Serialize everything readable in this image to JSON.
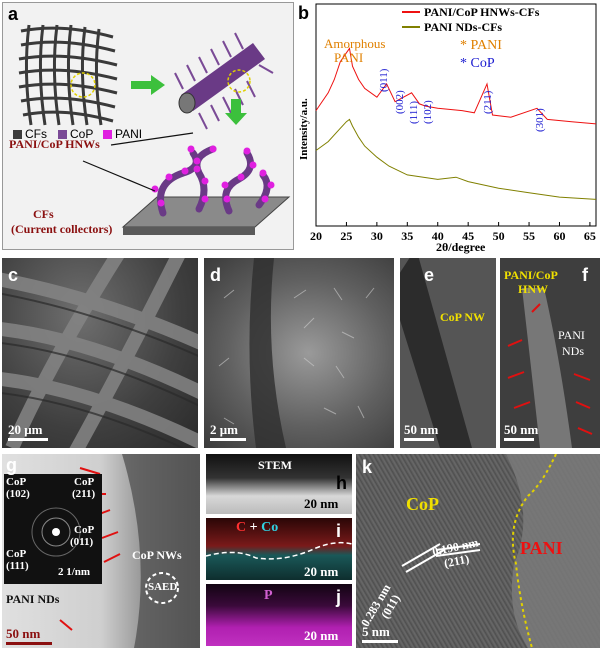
{
  "panels": {
    "a": {
      "label": "a",
      "legend": [
        "CFs",
        "CoP",
        "PANI"
      ],
      "legend_colors": [
        "#3c3c3c",
        "#7a4a96",
        "#e020e0"
      ],
      "hnw_label": "PANI/CoP HNWs",
      "cf_label_1": "CFs",
      "cf_label_2": "(Current collectors)"
    },
    "b": {
      "label": "b",
      "annotations": {
        "amorphous_1": "Amorphous",
        "amorphous_2": "PANI",
        "pani_marker": "* PANI",
        "cop_marker": "* CoP",
        "peaks": [
          "(011)",
          "(002)",
          "(111)",
          "(102)",
          "(211)",
          "(301)"
        ]
      }
    },
    "c": {
      "label": "c",
      "scale": "20 μm"
    },
    "d": {
      "label": "d",
      "scale": "2 μm"
    },
    "e": {
      "label": "e",
      "scale": "50 nm",
      "caption": "CoP NW"
    },
    "f": {
      "label": "f",
      "scale": "50 nm",
      "caption_1": "PANI/CoP",
      "caption_2": "HNW",
      "nds_1": "PANI",
      "nds_2": "NDs"
    },
    "g": {
      "label": "g",
      "scale": "50 nm",
      "inset_scale": "2 1/nm",
      "inset_labels": [
        "CoP",
        "(102)",
        "CoP",
        "(211)",
        "CoP",
        "(011)",
        "CoP",
        "(111)"
      ],
      "nws": "CoP NWs",
      "saed": "SAED",
      "nds": "PANI NDs"
    },
    "h": {
      "label": "h",
      "title": "STEM",
      "scale": "20 nm"
    },
    "i": {
      "label": "i",
      "c": "C",
      "plus": " + ",
      "co": "Co",
      "scale": "20 nm"
    },
    "j": {
      "label": "j",
      "p": "P",
      "scale": "20 nm"
    },
    "k": {
      "label": "k",
      "cop": "CoP",
      "pani": "PANI",
      "d1": "0.283 nm",
      "h1": "(011)",
      "d2": "0.190 nm",
      "h2": "(211)",
      "scale": "5 nm"
    }
  },
  "chart_data": {
    "type": "line",
    "xlabel": "2θ/degree",
    "ylabel": "Intensity/a.u.",
    "xlim": [
      20,
      66
    ],
    "xticks": [
      20,
      25,
      30,
      35,
      40,
      45,
      50,
      55,
      60,
      65
    ],
    "legend_position": "top-right",
    "series": [
      {
        "name": "PANI/CoP HNWs-CFs",
        "color": "#ee1111",
        "x": [
          20,
          22,
          23,
          24,
          25,
          25.5,
          26,
          27,
          28,
          30,
          31.6,
          33,
          35.7,
          37,
          38,
          40,
          44,
          46,
          48.1,
          49,
          52,
          56.3,
          58,
          62,
          66
        ],
        "y": [
          0.52,
          0.6,
          0.66,
          0.74,
          0.78,
          0.8,
          0.72,
          0.66,
          0.62,
          0.58,
          0.64,
          0.56,
          0.6,
          0.55,
          0.54,
          0.53,
          0.52,
          0.51,
          0.64,
          0.5,
          0.49,
          0.53,
          0.48,
          0.47,
          0.46
        ]
      },
      {
        "name": "PANI NDs-CFs",
        "color": "#808000",
        "x": [
          20,
          22,
          24,
          25,
          25.5,
          26,
          27,
          28,
          30,
          32,
          35,
          40,
          43,
          45,
          50,
          55,
          60,
          66
        ],
        "y": [
          0.34,
          0.38,
          0.44,
          0.47,
          0.48,
          0.45,
          0.4,
          0.36,
          0.31,
          0.27,
          0.23,
          0.21,
          0.22,
          0.2,
          0.17,
          0.15,
          0.13,
          0.12
        ]
      }
    ]
  }
}
